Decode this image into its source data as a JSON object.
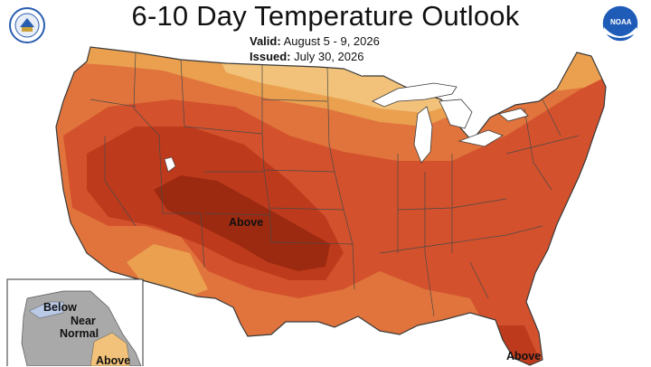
{
  "title": "6-10 Day Temperature Outlook",
  "valid": {
    "label": "Valid:",
    "value": "August 5 - 9, 2026"
  },
  "issued": {
    "label": "Issued:",
    "value": "July 30, 2026"
  },
  "logos": {
    "left": "department-of-commerce-seal",
    "right": "noaa-logo",
    "noaa_text": "NOAA"
  },
  "labels": {
    "conus_above": "Above",
    "florida_above": "Above",
    "alaska_below": "Below",
    "alaska_near": "Near",
    "alaska_normal": "Normal",
    "alaska_above": "Above"
  },
  "colors": {
    "above_33": "#f2c27a",
    "above_40": "#eaa04f",
    "above_50": "#e0743c",
    "above_60": "#d3512c",
    "above_70": "#bd3a1c",
    "above_80": "#9c2a10",
    "near_normal": "#a9a9a9",
    "below_33": "#b9c9e6",
    "water": "#ffffff",
    "border": "#3a3a3a"
  }
}
